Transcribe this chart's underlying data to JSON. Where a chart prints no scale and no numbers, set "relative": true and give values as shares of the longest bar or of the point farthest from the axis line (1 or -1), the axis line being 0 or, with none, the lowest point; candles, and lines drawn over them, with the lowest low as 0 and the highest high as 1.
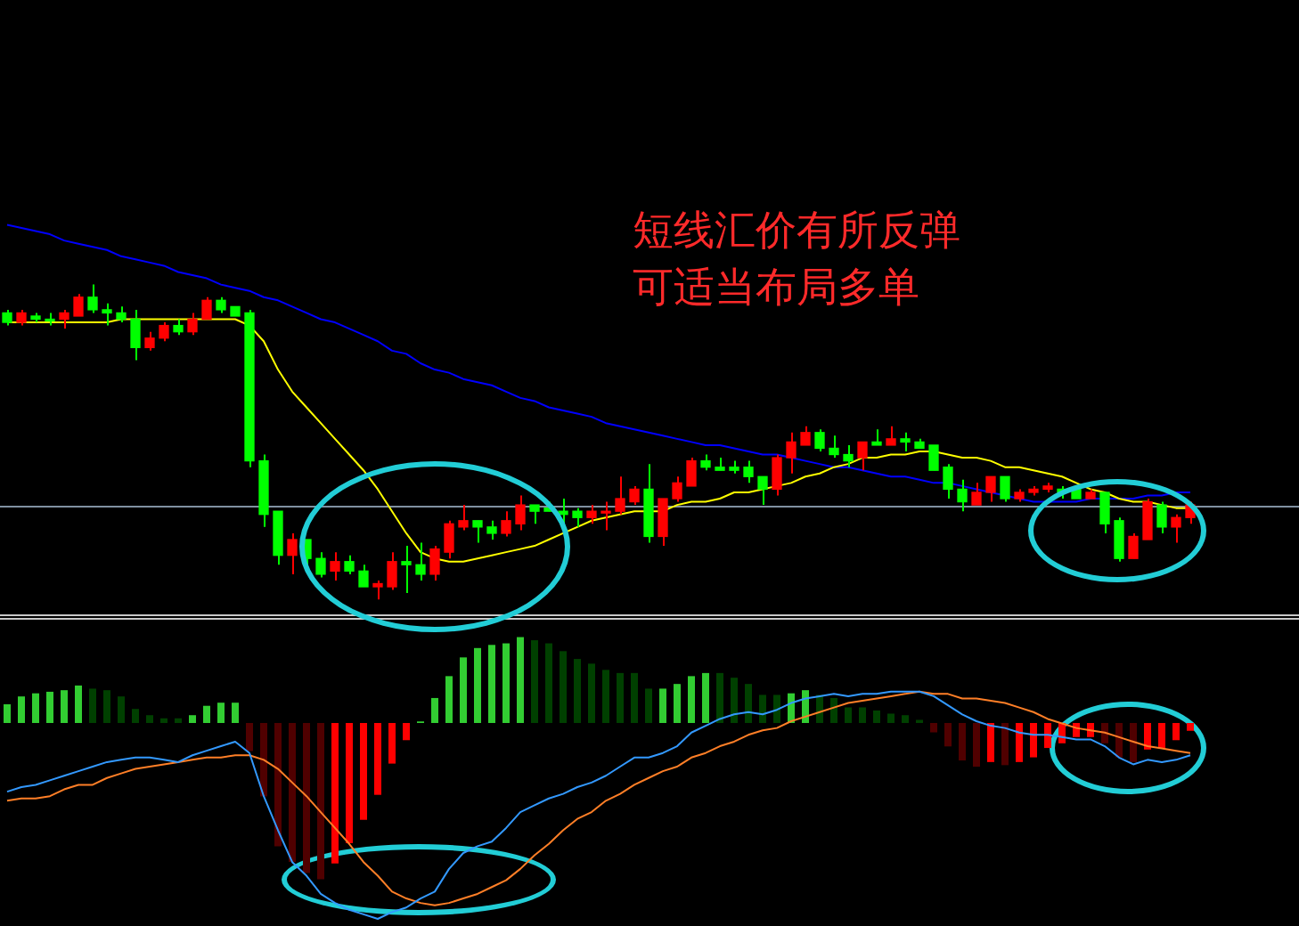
{
  "chart_data": [
    {
      "type": "candlestick",
      "relative": true,
      "marker": "none",
      "categories": [
        null,
        null,
        null,
        null,
        null,
        null,
        null,
        null,
        null,
        null,
        null,
        null,
        null,
        null,
        null,
        null,
        null,
        null,
        null,
        null,
        null,
        null,
        null,
        null,
        null,
        null,
        null,
        null,
        null,
        null,
        null,
        null,
        null,
        null,
        null,
        null,
        null,
        null,
        null,
        null,
        null,
        null,
        null,
        null,
        null,
        null,
        null,
        null,
        null,
        null,
        null,
        null,
        null,
        null,
        null,
        null,
        null,
        null,
        null,
        null,
        null,
        null,
        null,
        null,
        null,
        null,
        null,
        null,
        null,
        null,
        null,
        null,
        null,
        null,
        null,
        null,
        null,
        null,
        null,
        null,
        null,
        null,
        null,
        null
      ],
      "ohlc": [
        [
          0.91,
          0.92,
          0.87,
          0.88
        ],
        [
          0.88,
          0.92,
          0.87,
          0.91
        ],
        [
          0.9,
          0.91,
          0.88,
          0.89
        ],
        [
          0.89,
          0.91,
          0.87,
          0.89
        ],
        [
          0.89,
          0.92,
          0.86,
          0.91
        ],
        [
          0.9,
          0.97,
          0.9,
          0.96
        ],
        [
          0.96,
          1.0,
          0.91,
          0.92
        ],
        [
          0.92,
          0.94,
          0.87,
          0.91
        ],
        [
          0.91,
          0.93,
          0.88,
          0.89
        ],
        [
          0.89,
          0.92,
          0.76,
          0.8
        ],
        [
          0.8,
          0.85,
          0.79,
          0.83
        ],
        [
          0.83,
          0.88,
          0.82,
          0.87
        ],
        [
          0.87,
          0.89,
          0.84,
          0.85
        ],
        [
          0.85,
          0.91,
          0.84,
          0.89
        ],
        [
          0.89,
          0.96,
          0.89,
          0.95
        ],
        [
          0.95,
          0.96,
          0.91,
          0.92
        ],
        [
          0.93,
          0.93,
          0.9,
          0.9
        ],
        [
          0.91,
          0.92,
          0.42,
          0.44
        ],
        [
          0.44,
          0.46,
          0.23,
          0.27
        ],
        [
          0.28,
          0.28,
          0.11,
          0.14
        ],
        [
          0.14,
          0.21,
          0.08,
          0.19
        ],
        [
          0.19,
          0.19,
          0.11,
          0.13
        ],
        [
          0.13,
          0.15,
          0.07,
          0.08
        ],
        [
          0.09,
          0.15,
          0.06,
          0.12
        ],
        [
          0.12,
          0.14,
          0.08,
          0.09
        ],
        [
          0.09,
          0.11,
          0.04,
          0.04
        ],
        [
          0.04,
          0.06,
          0.0,
          0.05
        ],
        [
          0.04,
          0.15,
          0.03,
          0.12
        ],
        [
          0.12,
          0.17,
          0.02,
          0.11
        ],
        [
          0.11,
          0.18,
          0.06,
          0.08
        ],
        [
          0.08,
          0.17,
          0.06,
          0.16
        ],
        [
          0.15,
          0.25,
          0.13,
          0.24
        ],
        [
          0.23,
          0.3,
          0.22,
          0.25
        ],
        [
          0.25,
          0.25,
          0.18,
          0.23
        ],
        [
          0.23,
          0.25,
          0.19,
          0.21
        ],
        [
          0.21,
          0.28,
          0.2,
          0.25
        ],
        [
          0.24,
          0.33,
          0.22,
          0.3
        ],
        [
          0.3,
          0.3,
          0.24,
          0.28
        ],
        [
          0.29,
          0.31,
          0.28,
          0.28
        ],
        [
          0.28,
          0.32,
          0.23,
          0.27
        ],
        [
          0.28,
          0.29,
          0.23,
          0.26
        ],
        [
          0.26,
          0.3,
          0.24,
          0.28
        ],
        [
          0.28,
          0.31,
          0.22,
          0.28
        ],
        [
          0.28,
          0.39,
          0.27,
          0.32
        ],
        [
          0.31,
          0.36,
          0.3,
          0.35
        ],
        [
          0.35,
          0.43,
          0.18,
          0.2
        ],
        [
          0.2,
          0.32,
          0.17,
          0.32
        ],
        [
          0.32,
          0.39,
          0.31,
          0.37
        ],
        [
          0.36,
          0.45,
          0.36,
          0.44
        ],
        [
          0.44,
          0.46,
          0.41,
          0.42
        ],
        [
          0.42,
          0.45,
          0.41,
          0.41
        ],
        [
          0.42,
          0.44,
          0.4,
          0.41
        ],
        [
          0.42,
          0.44,
          0.37,
          0.39
        ],
        [
          0.39,
          0.39,
          0.3,
          0.35
        ],
        [
          0.35,
          0.46,
          0.33,
          0.45
        ],
        [
          0.45,
          0.53,
          0.4,
          0.5
        ],
        [
          0.49,
          0.55,
          0.49,
          0.53
        ],
        [
          0.53,
          0.54,
          0.47,
          0.48
        ],
        [
          0.48,
          0.52,
          0.45,
          0.46
        ],
        [
          0.46,
          0.49,
          0.42,
          0.44
        ],
        [
          0.45,
          0.5,
          0.41,
          0.5
        ],
        [
          0.5,
          0.54,
          0.49,
          0.49
        ],
        [
          0.49,
          0.55,
          0.49,
          0.51
        ],
        [
          0.51,
          0.53,
          0.47,
          0.5
        ],
        [
          0.5,
          0.51,
          0.48,
          0.48
        ],
        [
          0.49,
          0.49,
          0.41,
          0.41
        ],
        [
          0.42,
          0.43,
          0.32,
          0.35
        ],
        [
          0.35,
          0.38,
          0.28,
          0.31
        ],
        [
          0.3,
          0.37,
          0.3,
          0.34
        ],
        [
          0.34,
          0.39,
          0.31,
          0.39
        ],
        [
          0.39,
          0.39,
          0.31,
          0.32
        ],
        [
          0.32,
          0.35,
          0.31,
          0.34
        ],
        [
          0.34,
          0.36,
          0.33,
          0.35
        ],
        [
          0.35,
          0.37,
          0.34,
          0.36
        ],
        [
          0.35,
          0.36,
          0.32,
          0.34
        ],
        [
          0.35,
          0.36,
          0.32,
          0.32
        ],
        [
          0.32,
          0.35,
          0.32,
          0.34
        ],
        [
          0.34,
          0.34,
          0.21,
          0.24
        ],
        [
          0.25,
          0.26,
          0.12,
          0.13
        ],
        [
          0.13,
          0.21,
          0.13,
          0.2
        ],
        [
          0.19,
          0.32,
          0.19,
          0.31
        ],
        [
          0.3,
          0.31,
          0.21,
          0.23
        ],
        [
          0.23,
          0.27,
          0.18,
          0.26
        ],
        [
          0.26,
          0.31,
          0.24,
          0.3
        ]
      ],
      "colors": [
        "#00ff00",
        "#ff0000",
        "#00ff00",
        "#00ff00",
        "#ff0000",
        "#ff0000",
        "#00ff00",
        "#00ff00",
        "#00ff00",
        "#00ff00",
        "#ff0000",
        "#ff0000",
        "#00ff00",
        "#ff0000",
        "#ff0000",
        "#00ff00",
        "#00ff00",
        "#00ff00",
        "#00ff00",
        "#00ff00",
        "#ff0000",
        "#00ff00",
        "#00ff00",
        "#ff0000",
        "#00ff00",
        "#00ff00",
        "#ff0000",
        "#ff0000",
        "#00ff00",
        "#00ff00",
        "#ff0000",
        "#ff0000",
        "#ff0000",
        "#00ff00",
        "#00ff00",
        "#ff0000",
        "#ff0000",
        "#00ff00",
        "#00ff00",
        "#00ff00",
        "#00ff00",
        "#ff0000",
        "#ff0000",
        "#ff0000",
        "#ff0000",
        "#00ff00",
        "#ff0000",
        "#ff0000",
        "#ff0000",
        "#00ff00",
        "#00ff00",
        "#00ff00",
        "#00ff00",
        "#00ff00",
        "#ff0000",
        "#ff0000",
        "#ff0000",
        "#00ff00",
        "#00ff00",
        "#00ff00",
        "#ff0000",
        "#00ff00",
        "#ff0000",
        "#00ff00",
        "#00ff00",
        "#00ff00",
        "#00ff00",
        "#00ff00",
        "#ff0000",
        "#ff0000",
        "#00ff00",
        "#ff0000",
        "#ff0000",
        "#ff0000",
        "#00ff00",
        "#00ff00",
        "#ff0000",
        "#00ff00",
        "#00ff00",
        "#ff0000",
        "#ff0000",
        "#00ff00",
        "#ff0000",
        "#ff0000"
      ],
      "series": [
        {
          "type": "line",
          "color": "#ffff00",
          "values": [
            0.88,
            0.88,
            0.88,
            0.88,
            0.88,
            0.88,
            0.88,
            0.88,
            0.89,
            0.89,
            0.89,
            0.89,
            0.89,
            0.89,
            0.89,
            0.89,
            0.89,
            0.87,
            0.82,
            0.73,
            0.66,
            0.61,
            0.56,
            0.51,
            0.46,
            0.41,
            0.35,
            0.28,
            0.21,
            0.15,
            0.13,
            0.12,
            0.12,
            0.13,
            0.14,
            0.15,
            0.16,
            0.17,
            0.19,
            0.21,
            0.23,
            0.25,
            0.26,
            0.27,
            0.28,
            0.28,
            0.28,
            0.3,
            0.31,
            0.31,
            0.32,
            0.34,
            0.34,
            0.35,
            0.36,
            0.37,
            0.39,
            0.4,
            0.42,
            0.43,
            0.45,
            0.45,
            0.46,
            0.46,
            0.47,
            0.47,
            0.46,
            0.45,
            0.45,
            0.44,
            0.42,
            0.42,
            0.41,
            0.4,
            0.39,
            0.37,
            0.35,
            0.34,
            0.32,
            0.31,
            0.31,
            0.3,
            0.29,
            0.29
          ]
        },
        {
          "type": "line",
          "color": "#0000ff",
          "values": [
            1.19,
            1.18,
            1.17,
            1.16,
            1.14,
            1.13,
            1.12,
            1.11,
            1.09,
            1.08,
            1.07,
            1.06,
            1.04,
            1.03,
            1.02,
            1.0,
            0.99,
            0.98,
            0.96,
            0.95,
            0.93,
            0.91,
            0.89,
            0.88,
            0.86,
            0.84,
            0.82,
            0.79,
            0.78,
            0.75,
            0.73,
            0.72,
            0.7,
            0.69,
            0.68,
            0.66,
            0.64,
            0.63,
            0.61,
            0.6,
            0.59,
            0.58,
            0.56,
            0.55,
            0.54,
            0.53,
            0.52,
            0.51,
            0.5,
            0.49,
            0.49,
            0.48,
            0.47,
            0.46,
            0.46,
            0.45,
            0.44,
            0.43,
            0.42,
            0.42,
            0.41,
            0.4,
            0.39,
            0.39,
            0.38,
            0.37,
            0.37,
            0.36,
            0.35,
            0.34,
            0.33,
            0.32,
            0.31,
            0.31,
            0.31,
            0.31,
            0.32,
            0.32,
            0.32,
            0.32,
            0.33,
            0.33,
            0.34,
            0.34
          ]
        }
      ],
      "ref_lines": [
        {
          "axis": "y",
          "value": 0.3,
          "color": "#8090a0"
        }
      ],
      "annotations": [
        "短线汇价有所反弹",
        "可适当布局多单"
      ]
    },
    {
      "type": "bar",
      "relative": true,
      "marker": "none",
      "categories": [
        null,
        null,
        null,
        null,
        null,
        null,
        null,
        null,
        null,
        null,
        null,
        null,
        null,
        null,
        null,
        null,
        null,
        null,
        null,
        null,
        null,
        null,
        null,
        null,
        null,
        null,
        null,
        null,
        null,
        null,
        null,
        null,
        null,
        null,
        null,
        null,
        null,
        null,
        null,
        null,
        null,
        null,
        null,
        null,
        null,
        null,
        null,
        null,
        null,
        null,
        null,
        null,
        null,
        null,
        null,
        null,
        null,
        null,
        null,
        null,
        null,
        null,
        null,
        null,
        null,
        null,
        null,
        null,
        null,
        null,
        null,
        null,
        null,
        null,
        null,
        null,
        null,
        null,
        null,
        null,
        null,
        null,
        null,
        null
      ],
      "series": [
        {
          "type": "bar",
          "colors": [
            "#32cd32",
            "#32cd32",
            "#32cd32",
            "#32cd32",
            "#32cd32",
            "#32cd32",
            "#004000",
            "#004000",
            "#004000",
            "#004000",
            "#004000",
            "#004000",
            "#004000",
            "#32cd32",
            "#32cd32",
            "#32cd32",
            "#32cd32",
            "#500000",
            "#500000",
            "#500000",
            "#500000",
            "#500000",
            "#500000",
            "#ff0000",
            "#ff0000",
            "#ff0000",
            "#ff0000",
            "#ff0000",
            "#ff0000",
            "#32cd32",
            "#32cd32",
            "#32cd32",
            "#32cd32",
            "#32cd32",
            "#32cd32",
            "#32cd32",
            "#32cd32",
            "#004000",
            "#004000",
            "#004000",
            "#004000",
            "#004000",
            "#004000",
            "#004000",
            "#004000",
            "#004000",
            "#32cd32",
            "#32cd32",
            "#32cd32",
            "#32cd32",
            "#004000",
            "#004000",
            "#004000",
            "#004000",
            "#004000",
            "#32cd32",
            "#32cd32",
            "#004000",
            "#004000",
            "#004000",
            "#004000",
            "#004000",
            "#004000",
            "#004000",
            "#004000",
            "#500000",
            "#500000",
            "#500000",
            "#500000",
            "#ff0000",
            "#500000",
            "#ff0000",
            "#ff0000",
            "#ff0000",
            "#ff0000",
            "#ff0000",
            "#ff0000",
            "#500000",
            "#500000",
            "#500000",
            "#ff0000",
            "#ff0000",
            "#ff0000",
            "#ff0000"
          ],
          "values": [
            0.12,
            0.17,
            0.19,
            0.2,
            0.21,
            0.24,
            0.22,
            0.21,
            0.17,
            0.09,
            0.05,
            0.03,
            0.03,
            0.05,
            0.11,
            0.13,
            0.13,
            -0.18,
            -0.47,
            -0.79,
            -0.89,
            -0.96,
            -1.0,
            -0.9,
            -0.77,
            -0.62,
            -0.46,
            -0.26,
            -0.11,
            0.01,
            0.16,
            0.3,
            0.42,
            0.48,
            0.5,
            0.51,
            0.55,
            0.53,
            0.51,
            0.46,
            0.41,
            0.38,
            0.34,
            0.32,
            0.32,
            0.22,
            0.22,
            0.25,
            0.3,
            0.32,
            0.32,
            0.29,
            0.25,
            0.18,
            0.18,
            0.19,
            0.21,
            0.18,
            0.16,
            0.1,
            0.1,
            0.08,
            0.06,
            0.05,
            0.02,
            -0.06,
            -0.15,
            -0.24,
            -0.28,
            -0.25,
            -0.27,
            -0.25,
            -0.22,
            -0.16,
            -0.13,
            -0.09,
            -0.09,
            -0.13,
            -0.22,
            -0.25,
            -0.17,
            -0.16,
            -0.11,
            -0.05
          ]
        }
      ]
    },
    {
      "type": "line",
      "relative": true,
      "marker": "none",
      "categories": [
        null,
        null,
        null,
        null,
        null,
        null,
        null,
        null,
        null,
        null,
        null,
        null,
        null,
        null,
        null,
        null,
        null,
        null,
        null,
        null,
        null,
        null,
        null,
        null,
        null,
        null,
        null,
        null,
        null,
        null,
        null,
        null,
        null,
        null,
        null,
        null,
        null,
        null,
        null,
        null,
        null,
        null,
        null,
        null,
        null,
        null,
        null,
        null,
        null,
        null,
        null,
        null,
        null,
        null,
        null,
        null,
        null,
        null,
        null,
        null,
        null,
        null,
        null,
        null,
        null,
        null,
        null,
        null,
        null,
        null,
        null,
        null,
        null,
        null,
        null,
        null,
        null,
        null,
        null,
        null,
        null,
        null,
        null,
        null
      ],
      "series": [
        {
          "type": "line",
          "color": "#3399ff",
          "values": [
            0.56,
            0.58,
            0.59,
            0.61,
            0.63,
            0.65,
            0.67,
            0.69,
            0.7,
            0.71,
            0.71,
            0.7,
            0.69,
            0.72,
            0.74,
            0.76,
            0.78,
            0.73,
            0.54,
            0.39,
            0.25,
            0.19,
            0.11,
            0.07,
            0.04,
            0.02,
            0,
            0.03,
            0.05,
            0.09,
            0.12,
            0.22,
            0.29,
            0.32,
            0.34,
            0.4,
            0.47,
            0.5,
            0.53,
            0.55,
            0.58,
            0.6,
            0.63,
            0.67,
            0.71,
            0.71,
            0.73,
            0.76,
            0.82,
            0.85,
            0.88,
            0.9,
            0.91,
            0.9,
            0.92,
            0.95,
            0.97,
            0.98,
            0.99,
            0.98,
            0.99,
            0.99,
            1,
            1,
            1,
            0.98,
            0.94,
            0.9,
            0.87,
            0.85,
            0.84,
            0.82,
            0.81,
            0.81,
            0.8,
            0.79,
            0.79,
            0.76,
            0.71,
            0.68,
            0.7,
            0.69,
            0.7,
            0.72
          ]
        },
        {
          "type": "line",
          "color": "#ff7f27",
          "values": [
            0.52,
            0.53,
            0.53,
            0.54,
            0.57,
            0.59,
            0.59,
            0.62,
            0.64,
            0.66,
            0.67,
            0.68,
            0.69,
            0.7,
            0.71,
            0.71,
            0.72,
            0.72,
            0.7,
            0.66,
            0.6,
            0.54,
            0.47,
            0.4,
            0.33,
            0.25,
            0.19,
            0.12,
            0.09,
            0.07,
            0.06,
            0.07,
            0.09,
            0.11,
            0.14,
            0.17,
            0.22,
            0.28,
            0.33,
            0.39,
            0.44,
            0.47,
            0.52,
            0.55,
            0.59,
            0.62,
            0.65,
            0.67,
            0.71,
            0.73,
            0.76,
            0.78,
            0.81,
            0.83,
            0.84,
            0.87,
            0.89,
            0.91,
            0.93,
            0.95,
            0.96,
            0.97,
            0.98,
            0.99,
            1,
            0.99,
            0.99,
            0.97,
            0.97,
            0.96,
            0.95,
            0.93,
            0.91,
            0.88,
            0.86,
            0.84,
            0.83,
            0.82,
            0.8,
            0.78,
            0.76,
            0.75,
            0.74,
            0.73
          ]
        }
      ]
    }
  ]
}
